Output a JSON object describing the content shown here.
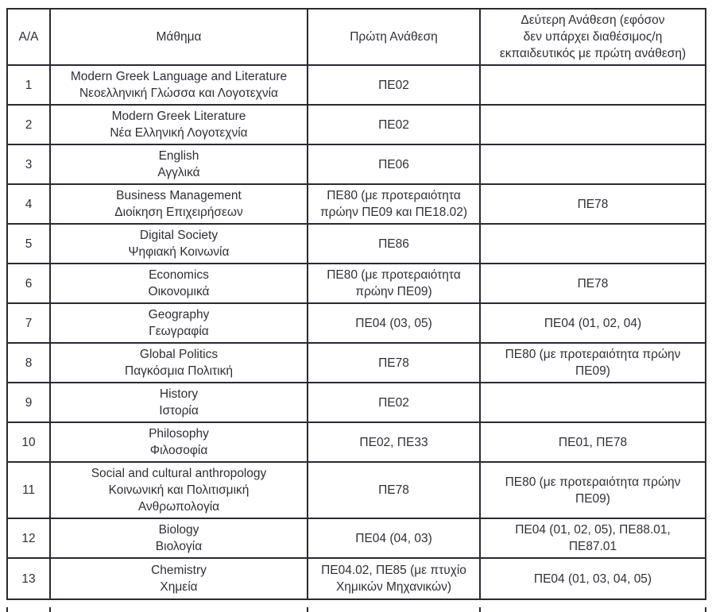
{
  "colors": {
    "background": "#ffffff",
    "line": "#2b2931",
    "text": "#312f36"
  },
  "table": {
    "headers": [
      "Α/Α",
      "Μάθημα",
      "Πρώτη Ανάθεση",
      "Δεύτερη Ανάθεση (εφόσον\nδεν υπάρχει διαθέσιμος/η\nεκπαιδευτικός με πρώτη ανάθεση)"
    ],
    "rows": [
      {
        "num": "1",
        "subject_en": "Modern Greek Language and Literature",
        "subject_el": "Νεοελληνική Γλώσσα και Λογοτεχνία",
        "first": "ΠΕ02",
        "second": ""
      },
      {
        "num": "2",
        "subject_en": "Modern Greek Literature",
        "subject_el": "Νέα Ελληνική Λογοτεχνία",
        "first": "ΠΕ02",
        "second": ""
      },
      {
        "num": "3",
        "subject_en": "English",
        "subject_el": "Αγγλικά",
        "first": "ΠΕ06",
        "second": ""
      },
      {
        "num": "4",
        "subject_en": "Business Management",
        "subject_el": "Διοίκηση Επιχειρήσεων",
        "first": "ΠΕ80 (με προτεραιότητα\nπρώην ΠΕ09 και ΠΕ18.02)",
        "second": "ΠΕ78"
      },
      {
        "num": "5",
        "subject_en": "Digital Society",
        "subject_el": "Ψηφιακή Κοινωνία",
        "first": "ΠΕ86",
        "second": ""
      },
      {
        "num": "6",
        "subject_en": "Economics",
        "subject_el": "Οικονομικά",
        "first": "ΠΕ80 (με προτεραιότητα\nπρώην ΠΕ09)",
        "second": "ΠΕ78"
      },
      {
        "num": "7",
        "subject_en": "Geography",
        "subject_el": "Γεωγραφία",
        "first": "ΠΕ04 (03, 05)",
        "second": "ΠΕ04 (01, 02, 04)"
      },
      {
        "num": "8",
        "subject_en": "Global Politics",
        "subject_el": "Παγκόσμια Πολιτική",
        "first": "ΠΕ78",
        "second": "ΠΕ80 (με προτεραιότητα πρώην\nΠΕ09)"
      },
      {
        "num": "9",
        "subject_en": "History",
        "subject_el": "Ιστορία",
        "first": "ΠΕ02",
        "second": ""
      },
      {
        "num": "10",
        "subject_en": "Philosophy",
        "subject_el": "Φιλοσοφία",
        "first": "ΠΕ02, ΠΕ33",
        "second": "ΠΕ01, ΠΕ78"
      },
      {
        "num": "11",
        "subject_en": "Social and cultural anthropology",
        "subject_el": "Κοινωνική και Πολιτισμική\nΑνθρωπολογία",
        "first": "ΠΕ78",
        "second": "ΠΕ80 (με προτεραιότητα πρώην\nΠΕ09)"
      },
      {
        "num": "12",
        "subject_en": "Biology",
        "subject_el": "Βιολογία",
        "first": "ΠΕ04 (04, 03)",
        "second": "ΠΕ04 (01, 02, 05), ΠΕ88.01,\nΠΕ87.01"
      },
      {
        "num": "13",
        "subject_en": "Chemistry",
        "subject_el": "Χημεία",
        "first": "ΠΕ04.02, ΠΕ85 (με πτυχίο\nΧημικών Μηχανικών)",
        "second": "ΠΕ04 (01, 03, 04, 05)"
      }
    ]
  }
}
